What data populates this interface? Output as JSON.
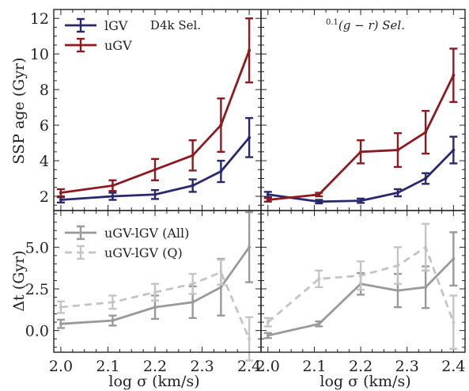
{
  "chart_data": [
    {
      "id": "top-left",
      "type": "line",
      "title": "D4k Sel.",
      "ylabel": "SSP age (Gyr)",
      "xlim": [
        1.985,
        2.425
      ],
      "ylim": [
        1.2,
        12.5
      ],
      "yticks": [
        2,
        4,
        6,
        8,
        10,
        12
      ],
      "legend": "top-left",
      "series": [
        {
          "name": "lGV",
          "color": "#28286e",
          "style": "solid",
          "x": [
            2.0,
            2.11,
            2.2,
            2.28,
            2.34,
            2.4
          ],
          "y": [
            1.8,
            2.0,
            2.1,
            2.6,
            3.4,
            5.3
          ],
          "err": [
            0.15,
            0.2,
            0.25,
            0.35,
            0.6,
            1.1
          ]
        },
        {
          "name": "uGV",
          "color": "#8c1a1f",
          "style": "solid",
          "x": [
            2.0,
            2.11,
            2.2,
            2.28,
            2.34,
            2.4
          ],
          "y": [
            2.2,
            2.6,
            3.5,
            4.3,
            6.0,
            10.2
          ],
          "err": [
            0.2,
            0.3,
            0.6,
            0.85,
            1.5,
            1.8
          ]
        }
      ]
    },
    {
      "id": "top-right",
      "type": "line",
      "title": "$^{0.1}(g-r)$ Sel.",
      "title_parts": {
        "sup": "0.1",
        "main": "(g − r) Sel."
      },
      "xlim": [
        1.985,
        2.425
      ],
      "ylim": [
        1.2,
        12.5
      ],
      "series": [
        {
          "name": "lGV",
          "color": "#28286e",
          "style": "solid",
          "x": [
            2.0,
            2.11,
            2.2,
            2.28,
            2.34,
            2.4
          ],
          "y": [
            2.1,
            1.7,
            1.75,
            2.2,
            3.0,
            4.6
          ],
          "err": [
            0.15,
            0.1,
            0.12,
            0.2,
            0.3,
            0.75
          ]
        },
        {
          "name": "uGV",
          "color": "#8c1a1f",
          "style": "solid",
          "x": [
            2.0,
            2.11,
            2.2,
            2.28,
            2.34,
            2.4
          ],
          "y": [
            1.8,
            2.1,
            4.5,
            4.6,
            5.6,
            8.8
          ],
          "err": [
            0.1,
            0.1,
            0.65,
            0.95,
            1.2,
            1.5
          ]
        }
      ]
    },
    {
      "id": "bottom-left",
      "type": "line",
      "ylabel": "Δt (Gyr)",
      "xlabel": "log σ (km/s)",
      "xlim": [
        1.985,
        2.425
      ],
      "ylim": [
        -1.3,
        7.2
      ],
      "yticks": [
        0.0,
        2.5,
        5.0
      ],
      "ytick_labels": [
        "0.0",
        "2.5",
        "5.0"
      ],
      "xticks": [
        2.0,
        2.1,
        2.2,
        2.3,
        2.4
      ],
      "xtick_labels": [
        "2.0",
        "2.1",
        "2.2",
        "2.3",
        "2.4"
      ],
      "legend": "top-left",
      "series": [
        {
          "name": "uGV-lGV (All)",
          "color": "#9a9a9a",
          "style": "solid",
          "x": [
            2.0,
            2.11,
            2.2,
            2.28,
            2.34,
            2.4
          ],
          "y": [
            0.4,
            0.6,
            1.4,
            1.7,
            2.6,
            5.0
          ],
          "err": [
            0.25,
            0.3,
            0.7,
            0.95,
            1.7,
            2.1
          ]
        },
        {
          "name": "uGV-lGV (Q)",
          "color": "#c4c4c4",
          "style": "dashed",
          "x": [
            2.0,
            2.11,
            2.2,
            2.28,
            2.34,
            2.4
          ],
          "y": [
            1.4,
            1.7,
            2.3,
            2.8,
            3.5,
            -0.5
          ],
          "err": [
            0.35,
            0.4,
            0.5,
            0.6,
            0.75,
            1.3
          ]
        }
      ]
    },
    {
      "id": "bottom-right",
      "type": "line",
      "xlabel": "log σ (km/s)",
      "xlim": [
        1.985,
        2.425
      ],
      "ylim": [
        -1.3,
        7.2
      ],
      "xticks": [
        2.0,
        2.1,
        2.2,
        2.3,
        2.4
      ],
      "xtick_labels": [
        "2.0",
        "2.1",
        "2.2",
        "2.3",
        "2.4"
      ],
      "series": [
        {
          "name": "uGV-lGV (All)",
          "color": "#9a9a9a",
          "style": "solid",
          "x": [
            2.0,
            2.11,
            2.2,
            2.28,
            2.34,
            2.4
          ],
          "y": [
            -0.3,
            0.4,
            2.8,
            2.4,
            2.6,
            4.3
          ],
          "err": [
            0.15,
            0.15,
            0.65,
            1.0,
            1.25,
            1.6
          ]
        },
        {
          "name": "uGV-lGV (Q)",
          "color": "#c4c4c4",
          "style": "dashed",
          "x": [
            2.0,
            2.11,
            2.2,
            2.28,
            2.34,
            2.4
          ],
          "y": [
            0.5,
            3.1,
            3.3,
            3.9,
            5.0,
            0.5
          ],
          "err": [
            0.25,
            0.5,
            0.85,
            1.1,
            1.4,
            1.6
          ]
        }
      ]
    }
  ]
}
